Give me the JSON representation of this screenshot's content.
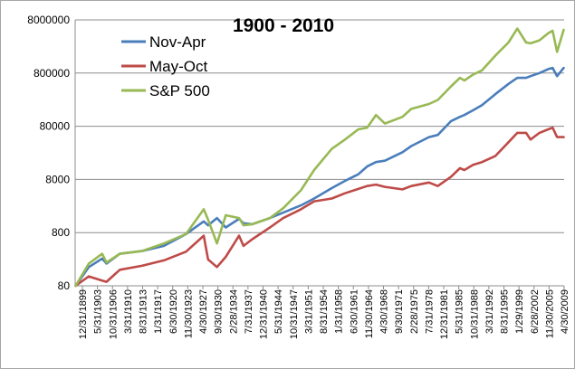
{
  "chart_data": {
    "type": "line",
    "title": "1900 - 2010",
    "y_scale": "log",
    "ylim": [
      80,
      8000000
    ],
    "y_ticks": [
      "80",
      "800",
      "8000",
      "80000",
      "800000",
      "8000000"
    ],
    "x_tick_labels": [
      "12/31/1899",
      "5/31/1903",
      "10/31/1906",
      "3/31/1910",
      "8/31/1913",
      "1/31/1917",
      "6/30/1920",
      "11/30/1923",
      "4/30/1927",
      "9/30/1930",
      "2/28/1934",
      "7/31/1937",
      "12/31/1940",
      "5/31/1944",
      "10/31/1947",
      "3/31/1951",
      "8/31/1954",
      "1/31/1958",
      "6/30/1961",
      "11/30/1964",
      "4/30/1968",
      "9/30/1971",
      "2/28/1975",
      "7/31/1978",
      "12/31/1981",
      "5/31/1985",
      "10/31/1988",
      "3/31/1992",
      "8/31/1995",
      "1/29/1999",
      "6/28/2002",
      "11/30/2005",
      "4/30/2009"
    ],
    "grid": true,
    "legend_position": "top-left",
    "x": [
      1900,
      1903,
      1906,
      1907,
      1910,
      1915,
      1920,
      1925,
      1929,
      1930,
      1932,
      1934,
      1937,
      1938,
      1940,
      1944,
      1947,
      1951,
      1954,
      1958,
      1961,
      1964,
      1966,
      1968,
      1970,
      1974,
      1976,
      1980,
      1982,
      1985,
      1987,
      1988,
      1990,
      1992,
      1995,
      1998,
      2000,
      2002,
      2003,
      2005,
      2007,
      2008,
      2009,
      2010.5
    ],
    "series": [
      {
        "name": "Nov-Apr",
        "color": "#4a7ebb",
        "values": [
          80,
          180,
          260,
          210,
          320,
          360,
          450,
          750,
          1300,
          1100,
          1500,
          1000,
          1450,
          1200,
          1150,
          1500,
          1900,
          2600,
          3500,
          5500,
          7500,
          10000,
          14000,
          17000,
          18000,
          26000,
          34000,
          50000,
          55000,
          100000,
          120000,
          130000,
          160000,
          200000,
          320000,
          500000,
          650000,
          650000,
          700000,
          800000,
          950000,
          1000000,
          700000,
          1000000
        ]
      },
      {
        "name": "May-Oct",
        "color": "#be4b48",
        "values": [
          80,
          120,
          100,
          95,
          160,
          190,
          240,
          350,
          700,
          250,
          180,
          280,
          700,
          450,
          600,
          1000,
          1500,
          2200,
          3100,
          3500,
          4400,
          5300,
          6000,
          6400,
          5800,
          5200,
          6000,
          7000,
          6000,
          9000,
          13000,
          12000,
          15000,
          17000,
          22000,
          40000,
          60000,
          60000,
          45000,
          60000,
          70000,
          75000,
          50000,
          50000
        ]
      },
      {
        "name": "S&P 500",
        "color": "#98b954",
        "values": [
          80,
          210,
          320,
          220,
          320,
          360,
          500,
          750,
          2200,
          1400,
          500,
          1700,
          1500,
          1100,
          1150,
          1500,
          2300,
          5000,
          12000,
          30000,
          45000,
          70000,
          75000,
          130000,
          90000,
          120000,
          170000,
          210000,
          250000,
          450000,
          650000,
          580000,
          750000,
          900000,
          1700000,
          3000000,
          5500000,
          3000000,
          2900000,
          3300000,
          4500000,
          5000000,
          2000000,
          5200000
        ]
      }
    ]
  }
}
